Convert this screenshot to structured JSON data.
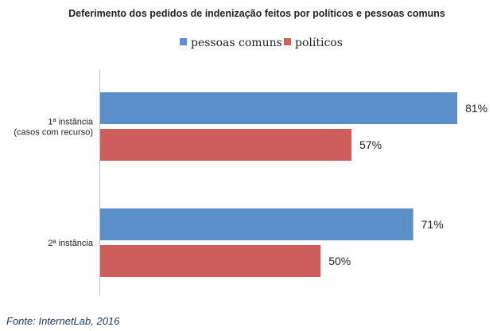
{
  "chart_data": {
    "type": "bar",
    "orientation": "horizontal",
    "title": "Deferimento dos pedidos de indenização feitos por políticos e pessoas comuns",
    "categories": [
      [
        "1ª instância",
        "(casos com recurso)"
      ],
      [
        "2ª instância"
      ]
    ],
    "series": [
      {
        "name": "pessoas comuns",
        "color": "#5b8fc9",
        "values": [
          81,
          71
        ]
      },
      {
        "name": "políticos",
        "color": "#cd5e5c",
        "values": [
          57,
          50
        ]
      }
    ],
    "value_suffix": "%",
    "xlim": [
      0,
      100
    ],
    "grid": false,
    "legend_position": "top",
    "xlabel": "",
    "ylabel": ""
  },
  "source": "Fonte: InternetLab, 2016"
}
